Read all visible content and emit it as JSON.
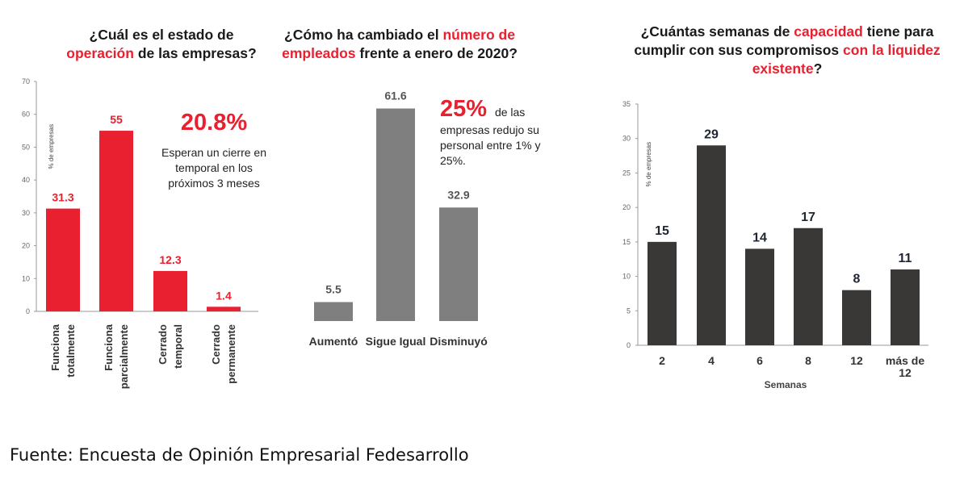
{
  "source": "Fuente: Encuesta de Opinión Empresarial Fedesarrollo",
  "colors": {
    "red": "#e8202f",
    "gray": "#7f7f7f",
    "dark": "#3a3737"
  },
  "chart_data": [
    {
      "type": "bar",
      "title_parts": [
        "¿Cuál es el estado de",
        "operación",
        "de las empresas?"
      ],
      "categories": [
        "Funciona totalmente",
        "Funciona parcialmente",
        "Cerrado temporal",
        "Cerrado permanente"
      ],
      "values": [
        31.3,
        55,
        12.3,
        1.4
      ],
      "value_labels": [
        "31.3",
        "55",
        "12.3",
        "1.4"
      ],
      "ylabel": "% de empresas",
      "ylim": [
        0,
        70
      ],
      "yticks": [
        0,
        10,
        20,
        30,
        40,
        50,
        60,
        70
      ],
      "color": "#e8202f",
      "annotation": {
        "value": "20.8%",
        "text": "Esperan un cierre en temporal en los próximos 3 meses"
      }
    },
    {
      "type": "bar",
      "title_parts": [
        "¿Cómo ha cambiado el",
        "número de empleados",
        "frente a enero de 2020?"
      ],
      "categories": [
        "Aumentó",
        "Sigue Igual",
        "Disminuyó"
      ],
      "values": [
        5.5,
        61.6,
        32.9
      ],
      "value_labels": [
        "5.5",
        "61.6",
        "32.9"
      ],
      "color": "#7f7f7f",
      "annotation": {
        "value": "25%",
        "text": "de las empresas redujo su personal entre 1% y 25%."
      }
    },
    {
      "type": "bar",
      "title_parts": [
        "¿Cuántas semanas de",
        "capacidad",
        "tiene para cumplir con sus compromisos",
        "con la liquidez existente",
        "?"
      ],
      "categories": [
        "2",
        "4",
        "6",
        "8",
        "12",
        "más de 12"
      ],
      "values": [
        15,
        29,
        14,
        17,
        8,
        11
      ],
      "value_labels": [
        "15",
        "29",
        "14",
        "17",
        "8",
        "11"
      ],
      "ylabel": "% de empresas",
      "xlabel": "Semanas",
      "ylim": [
        0,
        35
      ],
      "yticks": [
        0,
        5,
        10,
        15,
        20,
        25,
        30,
        35
      ],
      "color": "#3a3737"
    }
  ]
}
